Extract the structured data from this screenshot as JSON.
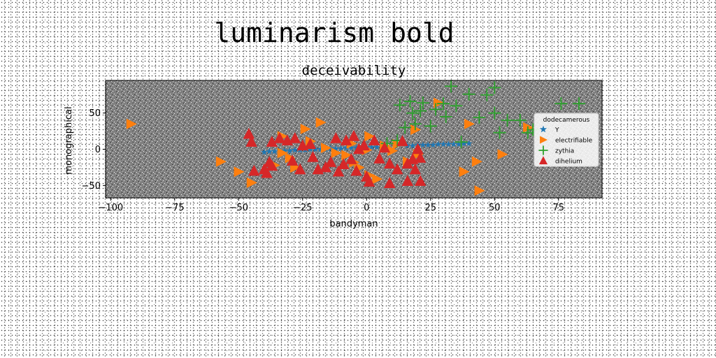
{
  "figure": {
    "suptitle": "luminarism bold"
  },
  "chart_data": {
    "type": "scatter",
    "title": "deceivability",
    "xlabel": "bandyman",
    "ylabel": "monographical",
    "xlim": [
      -102,
      92
    ],
    "ylim": [
      -67,
      95
    ],
    "xticks": [
      -100,
      -75,
      -50,
      -25,
      0,
      25,
      50,
      75
    ],
    "yticks": [
      -50,
      0,
      50
    ],
    "grid": false,
    "background_color": "#808080",
    "legend": {
      "title": "dodecamerous",
      "placement": "right"
    },
    "series": [
      {
        "name": "Y",
        "marker": "star",
        "color": "#1f77b4",
        "points": [
          [
            -40,
            -4
          ],
          [
            -38,
            -3
          ],
          [
            -36,
            -3
          ],
          [
            -34,
            -2
          ],
          [
            -32,
            -2
          ],
          [
            -30,
            -2
          ],
          [
            -28,
            -1
          ],
          [
            -26,
            -1
          ],
          [
            -24,
            -1
          ],
          [
            -22,
            0
          ],
          [
            -20,
            0
          ],
          [
            -18,
            0
          ],
          [
            -16,
            0
          ],
          [
            -14,
            1
          ],
          [
            -12,
            1
          ],
          [
            -10,
            1
          ],
          [
            -8,
            2
          ],
          [
            -6,
            2
          ],
          [
            -4,
            2
          ],
          [
            -2,
            2
          ],
          [
            0,
            3
          ],
          [
            2,
            3
          ],
          [
            4,
            3
          ],
          [
            6,
            4
          ],
          [
            8,
            4
          ],
          [
            16,
            5
          ],
          [
            18,
            5
          ],
          [
            20,
            6
          ],
          [
            22,
            6
          ],
          [
            24,
            6
          ],
          [
            26,
            6
          ],
          [
            28,
            7
          ],
          [
            30,
            7
          ],
          [
            32,
            7
          ],
          [
            34,
            7
          ],
          [
            36,
            7
          ],
          [
            38,
            8
          ],
          [
            40,
            8
          ]
        ]
      },
      {
        "name": "electrifiable",
        "marker": "triangle-right",
        "color": "#ff7f0e",
        "points": [
          [
            -92,
            35
          ],
          [
            -57,
            -17
          ],
          [
            -50,
            -31
          ],
          [
            -45,
            -46
          ],
          [
            -36,
            -22
          ],
          [
            -33,
            -5
          ],
          [
            -33,
            18
          ],
          [
            -30,
            -12
          ],
          [
            -28,
            -25
          ],
          [
            -24,
            28
          ],
          [
            -22,
            11
          ],
          [
            -18,
            37
          ],
          [
            -16,
            2
          ],
          [
            -12,
            -5
          ],
          [
            -8,
            -8
          ],
          [
            -6,
            8
          ],
          [
            -5,
            -18
          ],
          [
            -3,
            -25
          ],
          [
            0,
            -1
          ],
          [
            1,
            18
          ],
          [
            1,
            -36
          ],
          [
            4,
            -41
          ],
          [
            7,
            5
          ],
          [
            10,
            -2
          ],
          [
            12,
            7
          ],
          [
            16,
            -17
          ],
          [
            19,
            27
          ],
          [
            20,
            -7
          ],
          [
            28,
            64
          ],
          [
            38,
            -31
          ],
          [
            40,
            35
          ],
          [
            43,
            -17
          ],
          [
            44,
            -57
          ],
          [
            53,
            -7
          ],
          [
            63,
            30
          ]
        ]
      },
      {
        "name": "zythia",
        "marker": "plus",
        "color": "#2ca02c",
        "points": [
          [
            33,
            87
          ],
          [
            50,
            85
          ],
          [
            40,
            76
          ],
          [
            47,
            75
          ],
          [
            17,
            66
          ],
          [
            22,
            64
          ],
          [
            30,
            63
          ],
          [
            35,
            60
          ],
          [
            13,
            61
          ],
          [
            18,
            50
          ],
          [
            21,
            53
          ],
          [
            27,
            55
          ],
          [
            31,
            45
          ],
          [
            44,
            44
          ],
          [
            50,
            50
          ],
          [
            55,
            40
          ],
          [
            60,
            40
          ],
          [
            65,
            27
          ],
          [
            15,
            30
          ],
          [
            19,
            35
          ],
          [
            25,
            32
          ],
          [
            52,
            23
          ],
          [
            63,
            23
          ],
          [
            76,
            63
          ],
          [
            83,
            63
          ],
          [
            12,
            12
          ],
          [
            8,
            8
          ],
          [
            37,
            10
          ]
        ]
      },
      {
        "name": "dihelium",
        "marker": "triangle-up",
        "color": "#d62728",
        "points": [
          [
            -46,
            21
          ],
          [
            -45,
            10
          ],
          [
            -44,
            -30
          ],
          [
            -40,
            -28
          ],
          [
            -39,
            -33
          ],
          [
            -38,
            -18
          ],
          [
            -37,
            -23
          ],
          [
            -37,
            10
          ],
          [
            -34,
            15
          ],
          [
            -31,
            12
          ],
          [
            -29,
            -16
          ],
          [
            -28,
            15
          ],
          [
            -26,
            -28
          ],
          [
            -25,
            5
          ],
          [
            -22,
            7
          ],
          [
            -21,
            -11
          ],
          [
            -19,
            -28
          ],
          [
            -16,
            -25
          ],
          [
            -14,
            -18
          ],
          [
            -12,
            15
          ],
          [
            -11,
            -31
          ],
          [
            -9,
            -21
          ],
          [
            -8,
            12
          ],
          [
            -6,
            -14
          ],
          [
            -5,
            18
          ],
          [
            -4,
            -30
          ],
          [
            -3,
            0
          ],
          [
            -1,
            5
          ],
          [
            0,
            -38
          ],
          [
            1,
            -45
          ],
          [
            3,
            12
          ],
          [
            5,
            -13
          ],
          [
            7,
            2
          ],
          [
            9,
            -20
          ],
          [
            9,
            -47
          ],
          [
            12,
            -28
          ],
          [
            14,
            11
          ],
          [
            16,
            -20
          ],
          [
            16,
            -44
          ],
          [
            18,
            -14
          ],
          [
            19,
            -28
          ],
          [
            20,
            0
          ],
          [
            21,
            -12
          ],
          [
            21,
            -44
          ]
        ]
      }
    ]
  }
}
